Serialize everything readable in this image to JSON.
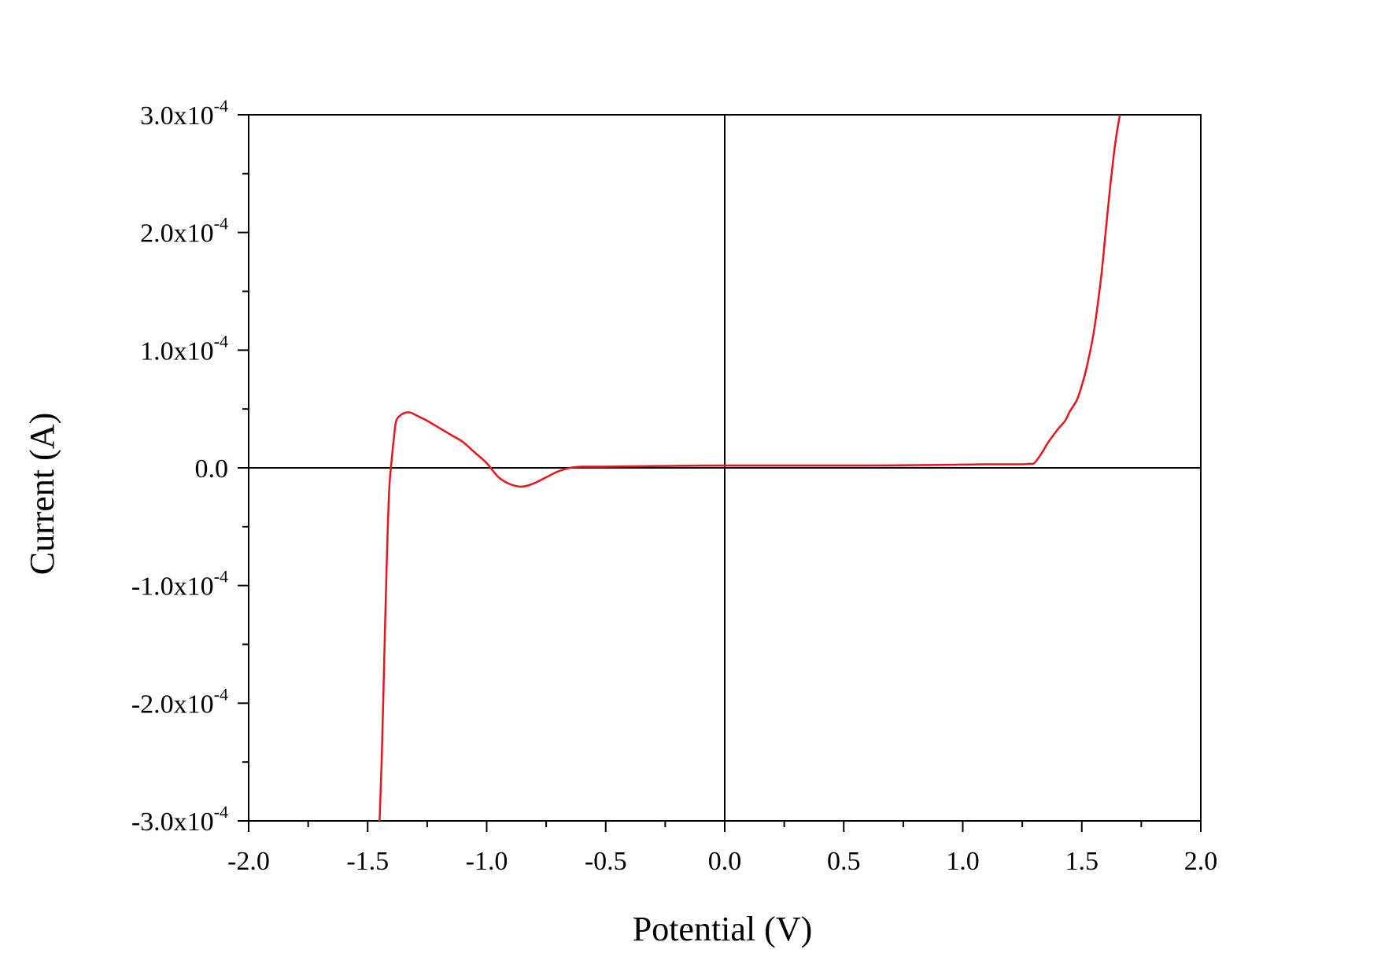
{
  "chart_data": {
    "type": "line",
    "title": "",
    "xlabel": "Potential (V)",
    "ylabel": "Current (A)",
    "xlim": [
      -2.0,
      2.0
    ],
    "ylim": [
      -0.0003,
      0.0003
    ],
    "x_ticks": [
      "-2.0",
      "-1.5",
      "-1.0",
      "-0.5",
      "0.0",
      "0.5",
      "1.0",
      "1.5",
      "2.0"
    ],
    "y_ticks": [
      {
        "mantissa": "3.0x10",
        "exp": "-4",
        "value": 0.0003
      },
      {
        "mantissa": "2.0x10",
        "exp": "-4",
        "value": 0.0002
      },
      {
        "mantissa": "1.0x10",
        "exp": "-4",
        "value": 0.0001
      },
      {
        "mantissa": "0.0",
        "exp": "",
        "value": 0.0
      },
      {
        "mantissa": "-1.0x10",
        "exp": "-4",
        "value": -0.0001
      },
      {
        "mantissa": "-2.0x10",
        "exp": "-4",
        "value": -0.0002
      },
      {
        "mantissa": "-3.0x10",
        "exp": "-4",
        "value": -0.0003
      }
    ],
    "grid": false,
    "zero_lines": true,
    "series": [
      {
        "color": "#e8151b",
        "x": [
          -1.45,
          -1.44,
          -1.43,
          -1.42,
          -1.41,
          -1.4,
          -1.39,
          -1.38,
          -1.36,
          -1.34,
          -1.32,
          -1.3,
          -1.25,
          -1.2,
          -1.15,
          -1.1,
          -1.05,
          -1.0,
          -0.95,
          -0.9,
          -0.85,
          -0.8,
          -0.75,
          -0.7,
          -0.65,
          -0.6,
          -0.5,
          -0.3,
          0.0,
          0.3,
          0.6,
          0.9,
          1.1,
          1.2,
          1.25,
          1.28,
          1.3,
          1.33,
          1.36,
          1.4,
          1.43,
          1.45,
          1.48,
          1.5,
          1.52,
          1.55,
          1.58,
          1.6,
          1.62,
          1.64,
          1.66,
          1.67
        ],
        "y": [
          -0.0003,
          -0.00024,
          -0.00016,
          -8e-05,
          -2e-05,
          5e-06,
          2.5e-05,
          4e-05,
          4.5e-05,
          4.7e-05,
          4.7e-05,
          4.5e-05,
          4e-05,
          3.4e-05,
          2.8e-05,
          2.2e-05,
          1.3e-05,
          4e-06,
          -8e-06,
          -1.4e-05,
          -1.6e-05,
          -1.3e-05,
          -8e-06,
          -3e-06,
          0.0,
          1e-06,
          1e-06,
          1.5e-06,
          2e-06,
          2e-06,
          2e-06,
          2.5e-06,
          3e-06,
          3e-06,
          3e-06,
          3.5e-06,
          4e-06,
          1.2e-05,
          2.2e-05,
          3.3e-05,
          4e-05,
          4.8e-05,
          5.8e-05,
          7e-05,
          8.5e-05,
          0.000115,
          0.00016,
          0.0002,
          0.00024,
          0.000275,
          0.0003,
          0.00031
        ]
      }
    ]
  }
}
